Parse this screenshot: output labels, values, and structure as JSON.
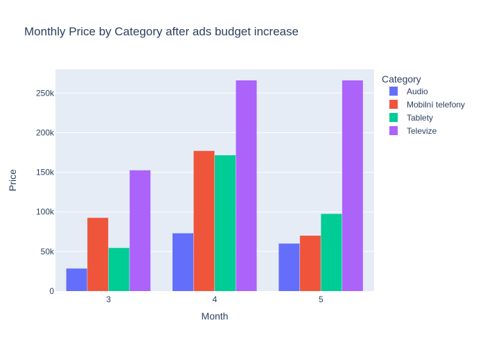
{
  "chart_data": {
    "type": "bar",
    "title": "Monthly Price by Category after ads budget increase",
    "xlabel": "Month",
    "ylabel": "Price",
    "categories": [
      "3",
      "4",
      "5"
    ],
    "ylim": [
      0,
      280000
    ],
    "yticks": [
      0,
      50000,
      100000,
      150000,
      200000,
      250000
    ],
    "ytick_labels": [
      "0",
      "50k",
      "100k",
      "150k",
      "200k",
      "250k"
    ],
    "grid": true,
    "legend": {
      "title": "Category",
      "placement": "right"
    },
    "series": [
      {
        "name": "Audio",
        "color": "#636efa",
        "values": [
          28500,
          73000,
          60000
        ]
      },
      {
        "name": "Mobilní telefony",
        "color": "#ef553b",
        "values": [
          92500,
          177000,
          70000
        ]
      },
      {
        "name": "Tablety",
        "color": "#00cc96",
        "values": [
          54500,
          171500,
          97500
        ]
      },
      {
        "name": "Televize",
        "color": "#ab63fa",
        "values": [
          152500,
          266000,
          266000
        ]
      }
    ],
    "colors": {
      "plot_background": "#e5ecf6",
      "gridline": "#ffffff",
      "text": "#2a3f5f"
    }
  }
}
